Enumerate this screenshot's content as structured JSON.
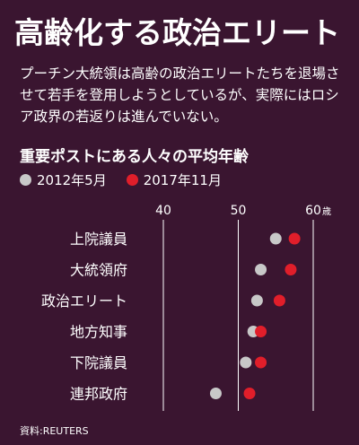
{
  "title": "高齢化する政治エリート",
  "lead": "プーチン大統領は高齢の政治エリートたちを退場させて若手を登用しようとしているが、実際にはロシア政界の若返りは進んでいない。",
  "source": "資料:REUTERS",
  "colors": {
    "background": "#3a1530",
    "series_2012": "#c8c8c8",
    "series_2017": "#e01e2a",
    "grid": "#ffffff"
  },
  "chart_data": {
    "type": "scatter",
    "title": "重要ポストにある人々の平均年齢",
    "categories": [
      "上院議員",
      "大統領府",
      "政治エリート",
      "地方知事",
      "下院議員",
      "連邦政府"
    ],
    "series": [
      {
        "name": "2012年5月",
        "values": [
          55,
          53,
          52.5,
          52,
          51,
          47
        ]
      },
      {
        "name": "2017年11月",
        "values": [
          57.5,
          57,
          55.5,
          53,
          53,
          51.5
        ]
      }
    ],
    "xticks": [
      "40",
      "50",
      "60"
    ],
    "xunit": "歳",
    "xlim": [
      40,
      60
    ],
    "grid": true,
    "legend": "top-left"
  }
}
